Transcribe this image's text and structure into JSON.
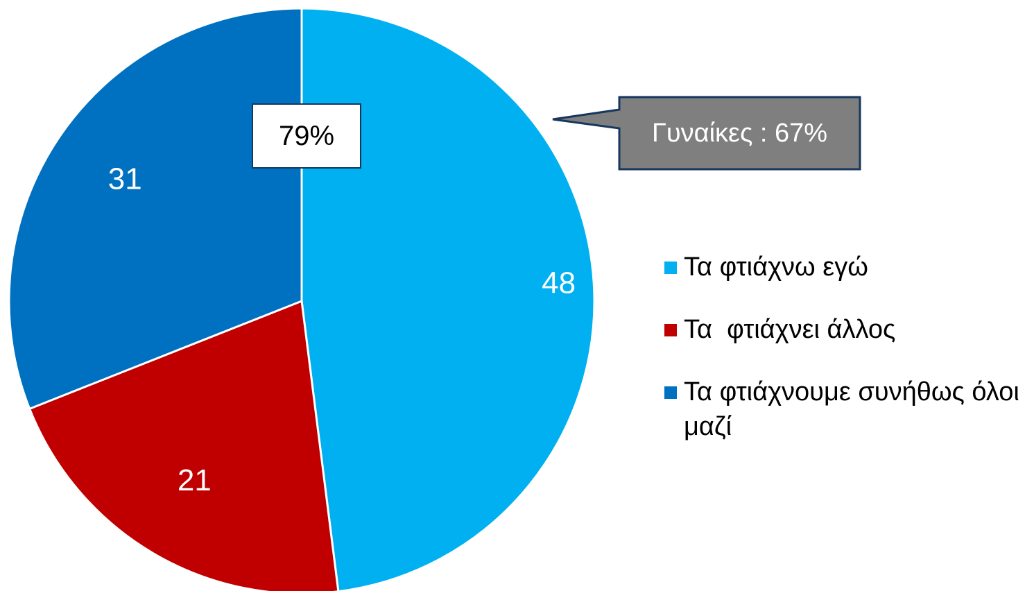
{
  "chart_data": {
    "type": "pie",
    "categories": [
      "Τα φτιάχνω εγώ",
      "Τα  φτιάχνει άλλος",
      "Τα φτιάχνουμε συνήθως όλοι μαζί"
    ],
    "values": [
      48,
      21,
      31
    ],
    "colors": [
      "#00b0f0",
      "#c00000",
      "#0070c0"
    ],
    "legend_position": "right",
    "annotations": [
      {
        "text": "79%",
        "style": "white box with dark border"
      },
      {
        "text": "Γυναίκες : 67%",
        "style": "grey callout pointing to first slice"
      }
    ]
  },
  "legend": [
    {
      "label": "Τα φτιάχνω εγώ",
      "color": "#00b0f0"
    },
    {
      "label": "Τα  φτιάχνει άλλος",
      "color": "#c00000"
    },
    {
      "label": "Τα φτιάχνουμε συνήθως όλοι μαζί",
      "color": "#0070c0"
    }
  ],
  "total_box": {
    "text": "79%"
  },
  "callout": {
    "text": "Γυναίκες : 67%",
    "fill": "#7f7f7f",
    "border": "#17375e"
  }
}
